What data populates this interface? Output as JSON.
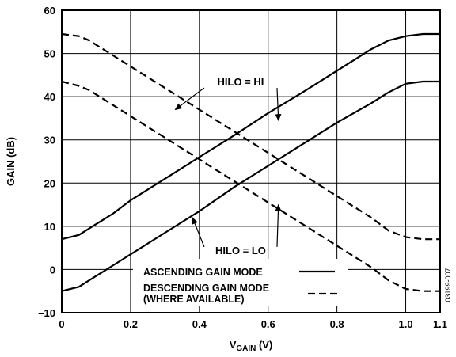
{
  "chart_data": {
    "type": "line",
    "xlabel": "V",
    "xlabel_sub": "GAIN",
    "xlabel_unit": " (V)",
    "ylabel": "GAIN (dB)",
    "xlim": [
      0,
      1.1
    ],
    "ylim": [
      -10,
      60
    ],
    "x_ticks": [
      0,
      0.2,
      0.4,
      0.6,
      0.8,
      1.0,
      1.1
    ],
    "x_tick_labels": [
      "0",
      "0.2",
      "0.4",
      "0.6",
      "0.8",
      "1.0",
      "1.1"
    ],
    "y_ticks": [
      -10,
      0,
      10,
      20,
      30,
      40,
      50,
      60
    ],
    "y_tick_labels": [
      "–10",
      "0",
      "10",
      "20",
      "30",
      "40",
      "50",
      "60"
    ],
    "grid": true,
    "legend_placement": "bottom-center",
    "figure_id": "03199-007",
    "annotations": [
      {
        "text": "HILO = HI",
        "x": 0.52,
        "y": 43.5,
        "arrows_to": [
          [
            0.33,
            37
          ],
          [
            0.63,
            34.5
          ]
        ]
      },
      {
        "text": "HILO = LO",
        "x": 0.52,
        "y": 4.5,
        "arrows_to": [
          [
            0.38,
            12
          ],
          [
            0.63,
            15
          ]
        ]
      }
    ],
    "legend": [
      {
        "label": "ASCENDING GAIN MODE",
        "style": "solid"
      },
      {
        "label": "DESCENDING GAIN MODE",
        "label2": "(WHERE AVAILABLE)",
        "style": "dashed"
      }
    ],
    "series": [
      {
        "style": "solid",
        "x": [
          0,
          0.05,
          0.1,
          0.15,
          0.2,
          0.3,
          0.4,
          0.5,
          0.6,
          0.7,
          0.8,
          0.9,
          0.95,
          1.0,
          1.05,
          1.1
        ],
        "y": [
          7,
          8,
          10.5,
          13,
          16,
          21,
          26,
          31,
          36.2,
          41,
          46,
          51,
          53,
          54,
          54.5,
          54.5
        ]
      },
      {
        "style": "solid",
        "x": [
          0,
          0.05,
          0.1,
          0.15,
          0.2,
          0.3,
          0.4,
          0.5,
          0.6,
          0.7,
          0.8,
          0.9,
          0.95,
          1.0,
          1.05,
          1.1
        ],
        "y": [
          -5,
          -4,
          -1.5,
          1,
          3.5,
          8.5,
          13.5,
          19,
          24,
          29,
          34,
          38.5,
          41,
          43,
          43.5,
          43.5
        ]
      },
      {
        "style": "dashed",
        "x": [
          0,
          0.05,
          0.08,
          0.1,
          0.2,
          0.3,
          0.4,
          0.5,
          0.6,
          0.7,
          0.8,
          0.9,
          0.95,
          1.0,
          1.05,
          1.1
        ],
        "y": [
          54.5,
          54,
          53,
          52,
          47,
          42,
          37,
          32,
          27,
          22,
          17,
          12,
          9,
          7.5,
          7,
          7
        ]
      },
      {
        "style": "dashed",
        "x": [
          0,
          0.05,
          0.08,
          0.1,
          0.2,
          0.3,
          0.4,
          0.5,
          0.6,
          0.7,
          0.8,
          0.9,
          0.95,
          1.0,
          1.05,
          1.1
        ],
        "y": [
          43.5,
          42.5,
          41.5,
          40.5,
          35.5,
          30.5,
          25.5,
          20.5,
          15.5,
          10.5,
          5.5,
          0.5,
          -2.5,
          -4.5,
          -5,
          -5
        ]
      }
    ]
  }
}
